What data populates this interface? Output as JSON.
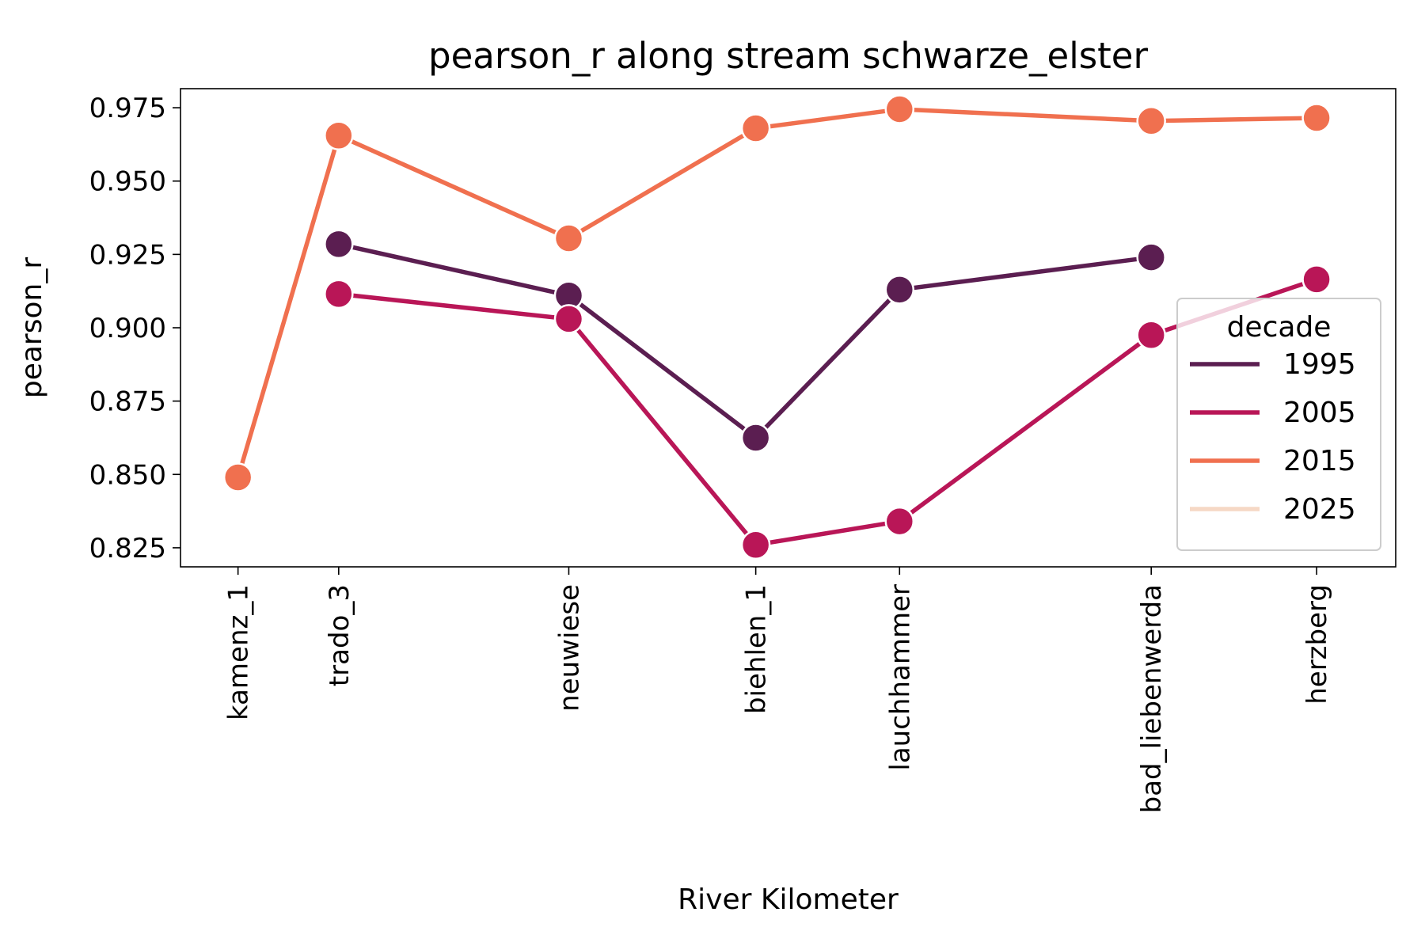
{
  "chart_data": {
    "type": "line",
    "title": "pearson_r along stream schwarze_elster",
    "xlabel": "River Kilometer",
    "ylabel": "pearson_r",
    "categories": [
      "kamenz_1",
      "trado_3",
      "neuwiese",
      "biehlen_1",
      "lauchhammer",
      "bad_liebenwerda",
      "herzberg"
    ],
    "x_positions": [
      0,
      0.7,
      2.3,
      3.6,
      4.6,
      6.35,
      7.5
    ],
    "xlim": [
      -0.4,
      8.05
    ],
    "ylim": [
      0.8185,
      0.9815
    ],
    "yticks": [
      0.825,
      0.85,
      0.875,
      0.9,
      0.925,
      0.95,
      0.975
    ],
    "ytick_labels": [
      "0.825",
      "0.850",
      "0.875",
      "0.900",
      "0.925",
      "0.950",
      "0.975"
    ],
    "grid": false,
    "legend": {
      "title": "decade",
      "placement": "center-right"
    },
    "series": [
      {
        "name": "1995",
        "color": "#5b1e51",
        "values": [
          null,
          0.9285,
          0.911,
          0.8625,
          0.913,
          0.924,
          null
        ]
      },
      {
        "name": "2005",
        "color": "#b91657",
        "values": [
          null,
          0.9115,
          0.903,
          0.826,
          0.834,
          0.8975,
          0.9165
        ]
      },
      {
        "name": "2015",
        "color": "#f0704f",
        "values": [
          0.849,
          0.9655,
          0.9305,
          0.968,
          0.9745,
          0.9705,
          0.9715
        ]
      },
      {
        "name": "2025",
        "color": "#f6d8c5",
        "values": [
          null,
          null,
          null,
          null,
          null,
          null,
          null
        ]
      }
    ]
  }
}
